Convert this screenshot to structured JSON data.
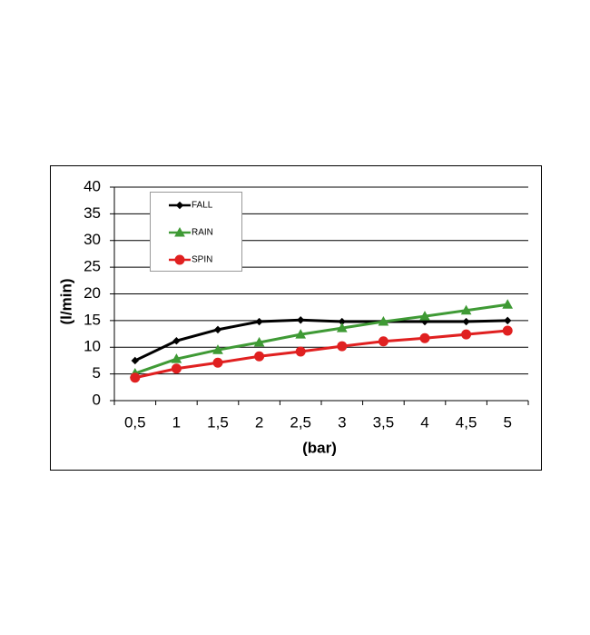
{
  "chart_data": {
    "type": "line",
    "x_label": "(bar)",
    "y_label": "(l/min)",
    "categories": [
      "0,5",
      "1",
      "1,5",
      "2",
      "2,5",
      "3",
      "3,5",
      "4",
      "4,5",
      "5"
    ],
    "series": [
      {
        "name": "FALL",
        "color": "#000000",
        "marker": "diamond",
        "values": [
          7.5,
          11.2,
          13.3,
          14.8,
          15.1,
          14.8,
          14.8,
          14.8,
          14.8,
          15.0
        ]
      },
      {
        "name": "RAIN",
        "color": "#3f9a35",
        "marker": "triangle",
        "values": [
          5.1,
          7.8,
          9.5,
          10.9,
          12.4,
          13.6,
          14.8,
          15.8,
          16.9,
          18.0
        ]
      },
      {
        "name": "SPIN",
        "color": "#e02020",
        "marker": "circle",
        "values": [
          4.3,
          6.0,
          7.1,
          8.3,
          9.2,
          10.2,
          11.1,
          11.7,
          12.4,
          13.1
        ]
      }
    ],
    "ylim": [
      0,
      40
    ],
    "yticks": [
      0,
      5,
      10,
      15,
      20,
      25,
      30,
      35,
      40
    ],
    "grid": true
  }
}
